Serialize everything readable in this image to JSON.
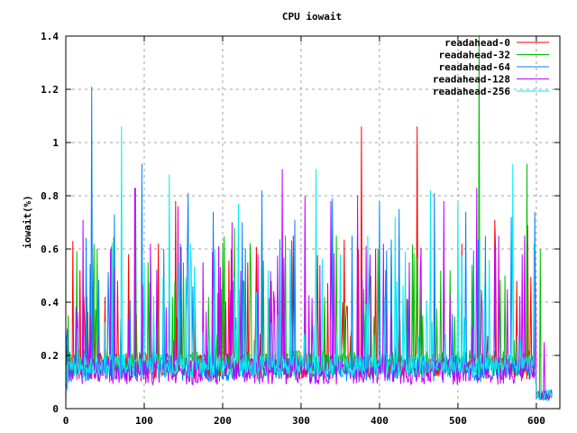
{
  "chart_data": {
    "type": "line",
    "title": "CPU iowait",
    "xlabel": "",
    "ylabel": "iowait(%)",
    "xlim": [
      0,
      630
    ],
    "ylim": [
      0,
      1.4
    ],
    "xticks": [
      0,
      100,
      200,
      300,
      400,
      500,
      600
    ],
    "yticks": [
      0,
      0.2,
      0.4,
      0.6,
      0.8,
      1,
      1.2,
      1.4
    ],
    "ytick_labels": [
      "0",
      "0.2",
      "0.4",
      "0.6",
      "0.8",
      "1",
      "1.2",
      "1.4"
    ],
    "grid": true,
    "legend_position": "top-right",
    "x_end": 620,
    "series": [
      {
        "name": "readahead-0",
        "color": "#ff0000",
        "baseline": 0.16,
        "noise": 0.05,
        "seed": 11,
        "peaks": [
          [
            18,
            0.52
          ],
          [
            35,
            0.46
          ],
          [
            66,
            0.48
          ],
          [
            80,
            0.58
          ],
          [
            118,
            0.62
          ],
          [
            140,
            0.78
          ],
          [
            165,
            0.38
          ],
          [
            200,
            0.36
          ],
          [
            232,
            0.55
          ],
          [
            262,
            0.48
          ],
          [
            290,
            0.65
          ],
          [
            330,
            0.42
          ],
          [
            377,
            1.06
          ],
          [
            395,
            0.6
          ],
          [
            448,
            1.06
          ],
          [
            470,
            0.55
          ],
          [
            505,
            0.62
          ],
          [
            547,
            0.71
          ],
          [
            575,
            0.48
          ],
          [
            589,
            0.69
          ]
        ]
      },
      {
        "name": "readahead-32",
        "color": "#00c000",
        "baseline": 0.17,
        "noise": 0.05,
        "seed": 23,
        "peaks": [
          [
            3,
            0.35
          ],
          [
            40,
            0.6
          ],
          [
            89,
            0.83
          ],
          [
            105,
            0.55
          ],
          [
            150,
            0.55
          ],
          [
            182,
            0.42
          ],
          [
            215,
            0.68
          ],
          [
            250,
            0.72
          ],
          [
            280,
            0.65
          ],
          [
            305,
            0.4
          ],
          [
            345,
            0.65
          ],
          [
            380,
            0.45
          ],
          [
            415,
            0.62
          ],
          [
            455,
            0.35
          ],
          [
            490,
            0.52
          ],
          [
            527,
            1.4
          ],
          [
            560,
            0.5
          ],
          [
            588,
            0.92
          ],
          [
            605,
            0.6
          ]
        ]
      },
      {
        "name": "readahead-64",
        "color": "#0080ff",
        "baseline": 0.15,
        "noise": 0.05,
        "seed": 37,
        "peaks": [
          [
            2,
            0.3
          ],
          [
            33,
            1.21
          ],
          [
            62,
            0.73
          ],
          [
            97,
            0.92
          ],
          [
            125,
            0.6
          ],
          [
            156,
            0.81
          ],
          [
            188,
            0.74
          ],
          [
            225,
            0.7
          ],
          [
            250,
            0.82
          ],
          [
            292,
            0.71
          ],
          [
            340,
            0.79
          ],
          [
            365,
            0.65
          ],
          [
            400,
            0.78
          ],
          [
            425,
            0.75
          ],
          [
            470,
            0.81
          ],
          [
            510,
            0.74
          ],
          [
            535,
            0.65
          ],
          [
            568,
            0.72
          ],
          [
            598,
            0.74
          ]
        ]
      },
      {
        "name": "readahead-128",
        "color": "#c000ff",
        "baseline": 0.14,
        "noise": 0.05,
        "seed": 51,
        "peaks": [
          [
            22,
            0.71
          ],
          [
            57,
            0.6
          ],
          [
            88,
            0.83
          ],
          [
            108,
            0.62
          ],
          [
            143,
            0.76
          ],
          [
            175,
            0.55
          ],
          [
            212,
            0.7
          ],
          [
            245,
            0.58
          ],
          [
            276,
            0.9
          ],
          [
            305,
            0.8
          ],
          [
            338,
            0.78
          ],
          [
            372,
            0.8
          ],
          [
            405,
            0.62
          ],
          [
            438,
            0.55
          ],
          [
            482,
            0.78
          ],
          [
            524,
            0.83
          ],
          [
            552,
            0.65
          ],
          [
            585,
            0.65
          ],
          [
            610,
            0.25
          ]
        ]
      },
      {
        "name": "readahead-256",
        "color": "#00eeee",
        "baseline": 0.16,
        "noise": 0.045,
        "seed": 67,
        "peaks": [
          [
            15,
            0.3
          ],
          [
            71,
            1.06
          ],
          [
            100,
            0.55
          ],
          [
            132,
            0.88
          ],
          [
            160,
            0.55
          ],
          [
            190,
            0.6
          ],
          [
            220,
            0.77
          ],
          [
            258,
            0.52
          ],
          [
            286,
            0.6
          ],
          [
            319,
            0.9
          ],
          [
            350,
            0.58
          ],
          [
            385,
            0.65
          ],
          [
            420,
            0.72
          ],
          [
            465,
            0.82
          ],
          [
            500,
            0.78
          ],
          [
            540,
            0.56
          ],
          [
            570,
            0.92
          ],
          [
            597,
            0.62
          ]
        ]
      }
    ]
  }
}
